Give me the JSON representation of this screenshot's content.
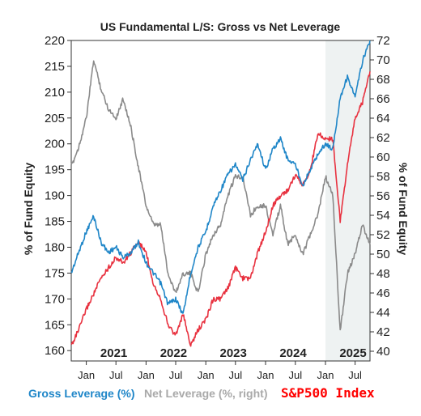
{
  "chart_data": {
    "type": "line",
    "title": "US Fundamental L/S: Gross vs Net Leverage",
    "ylabel_left": "% of Fund Equity",
    "ylabel_right": "% of Fund Equity",
    "ylim_left": [
      158,
      220
    ],
    "ylim_right": [
      39,
      72
    ],
    "yticks_left": [
      160,
      165,
      170,
      175,
      180,
      185,
      190,
      195,
      200,
      205,
      210,
      215,
      220
    ],
    "yticks_right": [
      40,
      42,
      44,
      46,
      48,
      50,
      52,
      54,
      56,
      58,
      60,
      62,
      64,
      66,
      68,
      70,
      72
    ],
    "x_start": "2020-10-01",
    "x_end": "2025-09-30",
    "year_labels": [
      {
        "label": "2021",
        "date": "2021-01-01"
      },
      {
        "label": "2022",
        "date": "2022-01-01"
      },
      {
        "label": "2023",
        "date": "2023-01-01"
      },
      {
        "label": "2024",
        "date": "2024-01-01"
      },
      {
        "label": "2025",
        "date": "2025-01-01"
      }
    ],
    "month_labels": [
      {
        "label": "Jan",
        "date": "2021-01-01"
      },
      {
        "label": "Jul",
        "date": "2021-07-01"
      },
      {
        "label": "Jan",
        "date": "2022-01-01"
      },
      {
        "label": "Jul",
        "date": "2022-07-01"
      },
      {
        "label": "Jan",
        "date": "2023-01-01"
      },
      {
        "label": "Jul",
        "date": "2023-07-01"
      },
      {
        "label": "Jan",
        "date": "2024-01-01"
      },
      {
        "label": "Jul",
        "date": "2024-07-01"
      },
      {
        "label": "Jan",
        "date": "2025-01-01"
      },
      {
        "label": "Jul",
        "date": "2025-07-01"
      }
    ],
    "shaded_region": {
      "start": "2025-01-01",
      "end": "2025-09-30",
      "color": "#eef2f2"
    },
    "grid": false,
    "legend_position": "bottom",
    "series": [
      {
        "name": "Gross Leverage (%)",
        "axis": "left",
        "color": "#1f86c8",
        "x": [
          "2020-10-01",
          "2020-11-15",
          "2021-01-01",
          "2021-02-15",
          "2021-04-01",
          "2021-05-15",
          "2021-07-01",
          "2021-08-15",
          "2021-10-01",
          "2021-11-15",
          "2022-01-01",
          "2022-02-15",
          "2022-04-01",
          "2022-05-15",
          "2022-07-01",
          "2022-08-15",
          "2022-10-01",
          "2022-11-15",
          "2023-01-01",
          "2023-02-15",
          "2023-04-01",
          "2023-05-15",
          "2023-07-01",
          "2023-08-15",
          "2023-10-01",
          "2023-11-15",
          "2024-01-01",
          "2024-02-15",
          "2024-04-01",
          "2024-05-15",
          "2024-07-01",
          "2024-08-15",
          "2024-10-01",
          "2024-11-15",
          "2025-01-01",
          "2025-02-15",
          "2025-04-01",
          "2025-05-15",
          "2025-07-01",
          "2025-08-15",
          "2025-09-30"
        ],
        "values": [
          175,
          179,
          183,
          186,
          181,
          179,
          180,
          178,
          179,
          181,
          177,
          175,
          173,
          169,
          170,
          167,
          175,
          180,
          183,
          188,
          191,
          194,
          196,
          193,
          197,
          200,
          195,
          199,
          201,
          197,
          196,
          192,
          195,
          198,
          200,
          199,
          209,
          213,
          209,
          216,
          220
        ]
      },
      {
        "name": "Net Leverage (%, right)",
        "axis": "right",
        "color": "#8a8a8a",
        "x": [
          "2020-10-01",
          "2020-11-15",
          "2021-01-01",
          "2021-02-15",
          "2021-04-01",
          "2021-05-15",
          "2021-07-01",
          "2021-08-15",
          "2021-10-01",
          "2021-11-15",
          "2022-01-01",
          "2022-02-15",
          "2022-04-01",
          "2022-05-15",
          "2022-07-01",
          "2022-08-15",
          "2022-10-01",
          "2022-11-15",
          "2023-01-01",
          "2023-02-15",
          "2023-04-01",
          "2023-05-15",
          "2023-07-01",
          "2023-08-15",
          "2023-10-01",
          "2023-11-15",
          "2024-01-01",
          "2024-02-15",
          "2024-04-01",
          "2024-05-15",
          "2024-07-01",
          "2024-08-15",
          "2024-10-01",
          "2024-11-15",
          "2025-01-01",
          "2025-02-15",
          "2025-04-01",
          "2025-05-15",
          "2025-07-01",
          "2025-08-15",
          "2025-09-30"
        ],
        "values": [
          59,
          61,
          64,
          70,
          67,
          65,
          64,
          66,
          63,
          59,
          55,
          53,
          53,
          48,
          46,
          48,
          48,
          46,
          50,
          52,
          53,
          56,
          58,
          58,
          54,
          55,
          55,
          52,
          55,
          51,
          52,
          50,
          52,
          54,
          58,
          56,
          42,
          48,
          50,
          53,
          51
        ]
      },
      {
        "name": "S&P500 Index",
        "axis": "left",
        "color": "#e8313f",
        "x": [
          "2020-10-01",
          "2020-11-15",
          "2021-01-01",
          "2021-02-15",
          "2021-04-01",
          "2021-05-15",
          "2021-07-01",
          "2021-08-15",
          "2021-10-01",
          "2021-11-15",
          "2022-01-01",
          "2022-02-15",
          "2022-04-01",
          "2022-05-15",
          "2022-07-01",
          "2022-08-15",
          "2022-10-01",
          "2022-11-15",
          "2023-01-01",
          "2023-02-15",
          "2023-04-01",
          "2023-05-15",
          "2023-07-01",
          "2023-08-15",
          "2023-10-01",
          "2023-11-15",
          "2024-01-01",
          "2024-02-15",
          "2024-04-01",
          "2024-05-15",
          "2024-07-01",
          "2024-08-15",
          "2024-10-01",
          "2024-11-15",
          "2025-01-01",
          "2025-02-15",
          "2025-04-01",
          "2025-05-15",
          "2025-07-01",
          "2025-08-15",
          "2025-09-30"
        ],
        "values": [
          161,
          164,
          168,
          171,
          174,
          176,
          178,
          177,
          179,
          181,
          179,
          173,
          170,
          165,
          163,
          167,
          161,
          164,
          166,
          170,
          170,
          172,
          176,
          174,
          174,
          179,
          183,
          188,
          190,
          191,
          194,
          192,
          195,
          202,
          201,
          201,
          185,
          196,
          205,
          208,
          214
        ]
      }
    ],
    "legend": [
      {
        "label": "Gross Leverage (%)",
        "color": "#1f86c8"
      },
      {
        "label": "Net Leverage (%, right)",
        "color": "#a9a9a9"
      },
      {
        "label": "S&P500 Index",
        "color": "#ff0000"
      }
    ]
  }
}
